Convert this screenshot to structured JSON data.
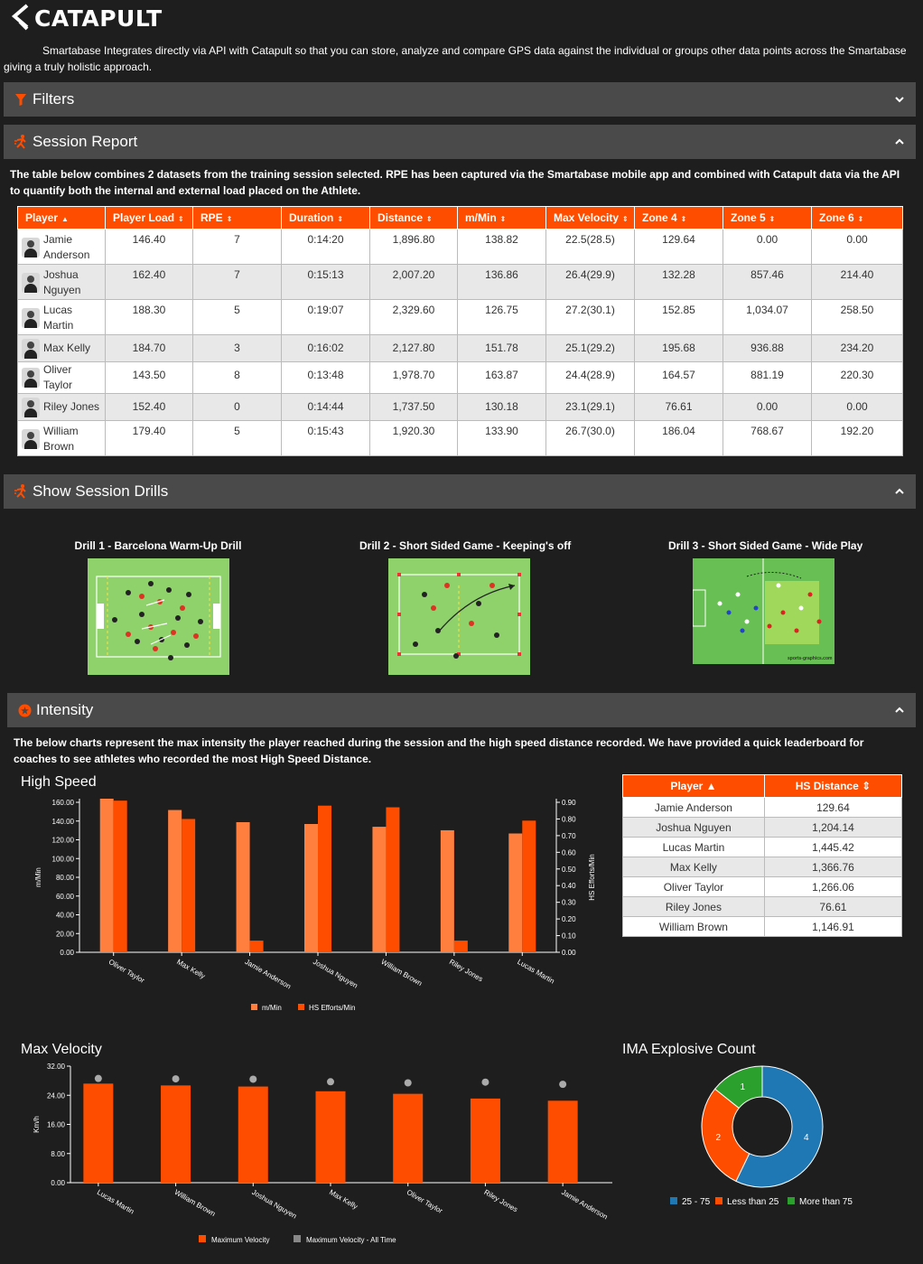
{
  "brand": {
    "name": "CATAPULT"
  },
  "intro": "Smartabase Integrates directly via API with Catapult so that you can store, analyze and compare GPS data against the individual or groups other data points across the Smartabase giving a truly holistic approach.",
  "colors": {
    "accent": "#ff4d00",
    "bar": "#4a4a4a",
    "background": "#1e1e1e",
    "bar_light": "#ff7f3f",
    "blue": "#1f77b4",
    "green": "#2ca02c",
    "grey": "#888888"
  },
  "sections": {
    "filters": {
      "title": "Filters",
      "icon": "filter-icon"
    },
    "session": {
      "title": "Session Report",
      "icon": "runner-icon"
    },
    "drills": {
      "title": "Show Session Drills",
      "icon": "runner-icon"
    },
    "intensity": {
      "title": "Intensity",
      "icon": "circle-star-icon"
    }
  },
  "session_desc": "The table below combines 2 datasets from the training session selected. RPE has been captured via the Smartabase mobile app and combined with Catapult data via the API to quantify both the internal and external load placed on the Athlete.",
  "session_table": {
    "headers": [
      "Player",
      "Player Load",
      "RPE",
      "Duration",
      "Distance",
      "m/Min",
      "Max Velocity",
      "Zone 4",
      "Zone 5",
      "Zone 6"
    ],
    "rows": [
      [
        "Jamie Anderson",
        "146.40",
        "7",
        "0:14:20",
        "1,896.80",
        "138.82",
        "22.5(28.5)",
        "129.64",
        "0.00",
        "0.00"
      ],
      [
        "Joshua Nguyen",
        "162.40",
        "7",
        "0:15:13",
        "2,007.20",
        "136.86",
        "26.4(29.9)",
        "132.28",
        "857.46",
        "214.40"
      ],
      [
        "Lucas Martin",
        "188.30",
        "5",
        "0:19:07",
        "2,329.60",
        "126.75",
        "27.2(30.1)",
        "152.85",
        "1,034.07",
        "258.50"
      ],
      [
        "Max Kelly",
        "184.70",
        "3",
        "0:16:02",
        "2,127.80",
        "151.78",
        "25.1(29.2)",
        "195.68",
        "936.88",
        "234.20"
      ],
      [
        "Oliver Taylor",
        "143.50",
        "8",
        "0:13:48",
        "1,978.70",
        "163.87",
        "24.4(28.9)",
        "164.57",
        "881.19",
        "220.30"
      ],
      [
        "Riley Jones",
        "152.40",
        "0",
        "0:14:44",
        "1,737.50",
        "130.18",
        "23.1(29.1)",
        "76.61",
        "0.00",
        "0.00"
      ],
      [
        "William Brown",
        "179.40",
        "5",
        "0:15:43",
        "1,920.30",
        "133.90",
        "26.7(30.0)",
        "186.04",
        "768.67",
        "192.20"
      ]
    ]
  },
  "drills": [
    {
      "title": "Drill 1 - Barcelona Warm-Up Drill"
    },
    {
      "title": "Drill 2 - Short Sided Game - Keeping's off"
    },
    {
      "title": "Drill 3 - Short Sided Game - Wide Play",
      "credit": "sports-graphics.com"
    }
  ],
  "intensity_desc": "The below charts represent the max intensity the player reached during the session and the high speed distance recorded. We have provided a quick leaderboard for coaches to see athletes who recorded the most High Speed Distance.",
  "hs_table": {
    "headers": [
      "Player",
      "HS Distance"
    ],
    "rows": [
      [
        "Jamie Anderson",
        "129.64"
      ],
      [
        "Joshua Nguyen",
        "1,204.14"
      ],
      [
        "Lucas Martin",
        "1,445.42"
      ],
      [
        "Max Kelly",
        "1,366.76"
      ],
      [
        "Oliver Taylor",
        "1,266.06"
      ],
      [
        "Riley Jones",
        "76.61"
      ],
      [
        "William Brown",
        "1,146.91"
      ]
    ]
  },
  "chart_data": [
    {
      "type": "bar",
      "title": "High Speed",
      "categories": [
        "Oliver Taylor",
        "Max Kelly",
        "Jamie Anderson",
        "Joshua Nguyen",
        "William Brown",
        "Riley Jones",
        "Lucas Martin"
      ],
      "series": [
        {
          "name": "m/Min",
          "axis": "left",
          "values": [
            163.87,
            151.78,
            138.82,
            136.86,
            133.9,
            130.18,
            126.75
          ]
        },
        {
          "name": "HS Efforts/Min",
          "axis": "right",
          "values": [
            0.91,
            0.8,
            0.07,
            0.88,
            0.87,
            0.07,
            0.79
          ]
        }
      ],
      "ylabel": "m/Min",
      "y2label": "HS Efforts/Min",
      "ylim": [
        0,
        160
      ],
      "y2lim": [
        0,
        0.9
      ],
      "yticks": [
        "0.00",
        "20.00",
        "40.00",
        "60.00",
        "80.00",
        "100.00",
        "120.00",
        "140.00",
        "160.00"
      ],
      "y2ticks": [
        "0.00",
        "0.10",
        "0.20",
        "0.30",
        "0.40",
        "0.50",
        "0.60",
        "0.70",
        "0.80",
        "0.90"
      ]
    },
    {
      "type": "bar",
      "title": "Max Velocity",
      "categories": [
        "Lucas Martin",
        "William Brown",
        "Joshua Nguyen",
        "Max Kelly",
        "Oliver Taylor",
        "Riley Jones",
        "Jamie Anderson"
      ],
      "series": [
        {
          "name": "Maximum Velocity",
          "values": [
            27.2,
            26.7,
            26.4,
            25.1,
            24.4,
            23.1,
            22.5
          ]
        },
        {
          "name": "Maximum Velocity - All Time",
          "values": [
            30.1,
            30.0,
            29.9,
            29.2,
            28.9,
            29.1,
            28.5
          ]
        }
      ],
      "ylabel": "Km/h",
      "ylim": [
        0,
        32
      ],
      "yticks": [
        "0.00",
        "8.00",
        "16.00",
        "24.00",
        "32.00"
      ]
    },
    {
      "type": "pie",
      "title": "IMA Explosive Count",
      "labels": [
        "25 - 75",
        "Less than 25",
        "More than 75"
      ],
      "values": [
        4,
        2,
        1
      ]
    }
  ]
}
